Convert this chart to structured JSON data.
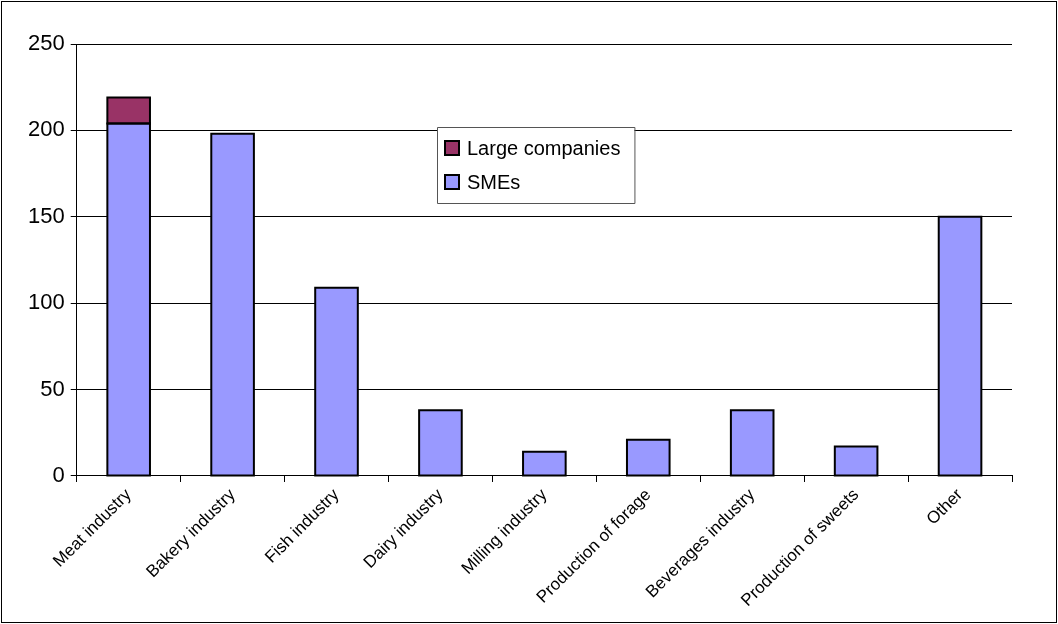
{
  "chart_data": {
    "type": "bar",
    "stacked": true,
    "categories": [
      "Meat industry",
      "Bakery industry",
      "Fish industry",
      "Dairy industry",
      "Milling industry",
      "Production of forage",
      "Beverages industry",
      "Production of sweets",
      "Other"
    ],
    "series": [
      {
        "name": "SMEs",
        "color": "#9999ff",
        "values": [
          204,
          198,
          109,
          38,
          14,
          21,
          38,
          17,
          150
        ]
      },
      {
        "name": "Large companies",
        "color": "#993366",
        "values": [
          15,
          null,
          null,
          null,
          null,
          null,
          null,
          null,
          null
        ]
      }
    ],
    "ylim": [
      0,
      250
    ],
    "yticks": [
      0,
      50,
      100,
      150,
      200,
      250
    ],
    "grid": "y",
    "legend": "top"
  }
}
